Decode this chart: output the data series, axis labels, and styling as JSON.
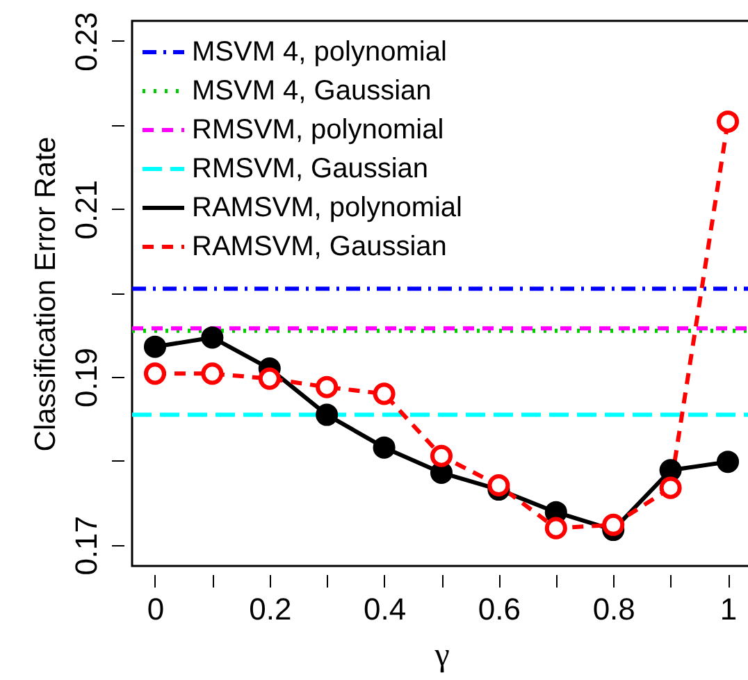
{
  "chart_data": {
    "type": "line",
    "xlabel": "γ",
    "ylabel": "Classification Error Rate",
    "xlim": [
      -0.04,
      1.04
    ],
    "ylim": [
      0.1675,
      0.2324
    ],
    "xticks": [
      0,
      {
        "value": 0.1,
        "label": null
      },
      0.2,
      {
        "value": 0.3,
        "label": null
      },
      0.4,
      {
        "value": 0.5,
        "label": null
      },
      0.6,
      {
        "value": 0.7,
        "label": null
      },
      0.8,
      {
        "value": 0.9,
        "label": null
      },
      {
        "value": 1,
        "label": "1"
      }
    ],
    "yticks": [
      0.17,
      {
        "value": 0.18,
        "label": null
      },
      0.19,
      {
        "value": 0.2,
        "label": null
      },
      0.21,
      {
        "value": 0.22,
        "label": null
      },
      0.23
    ],
    "grid": false,
    "legend": "top left",
    "series": [
      {
        "name": "MSVM 4, polynomial",
        "color": "#0000ff",
        "line_style": "dashdot",
        "marker": "none",
        "x": [
          -0.04,
          1.04
        ],
        "values": [
          0.2005,
          0.2005
        ]
      },
      {
        "name": "MSVM 4, Gaussian",
        "color": "#00cd00",
        "line_style": "dotted",
        "marker": "none",
        "x": [
          -0.04,
          1.04
        ],
        "values": [
          0.1955,
          0.1955
        ]
      },
      {
        "name": "RMSVM, polynomial",
        "color": "#ff00ff",
        "line_style": "dashed",
        "marker": "none",
        "x": [
          -0.04,
          1.04
        ],
        "values": [
          0.1958,
          0.1958
        ]
      },
      {
        "name": "RMSVM, Gaussian",
        "color": "#00ffff",
        "line_style": "longdash",
        "marker": "none",
        "x": [
          -0.04,
          1.04
        ],
        "values": [
          0.1855,
          0.1855
        ]
      },
      {
        "name": "RAMSVM, polynomial",
        "color": "#000000",
        "line_style": "solid",
        "marker": "circle",
        "x": [
          0,
          0.1,
          0.2,
          0.3,
          0.4,
          0.5,
          0.6,
          0.7,
          0.8,
          0.9,
          1
        ],
        "values": [
          0.1936,
          0.1947,
          0.191,
          0.1855,
          0.1816,
          0.1786,
          0.1766,
          0.1739,
          0.1718,
          0.1789,
          0.1799
        ]
      },
      {
        "name": "RAMSVM, Gaussian",
        "color": "#ff0000",
        "line_style": "dashed",
        "marker": "circle",
        "x": [
          0,
          0.1,
          0.2,
          0.3,
          0.4,
          0.5,
          0.6,
          0.7,
          0.8,
          0.9,
          1
        ],
        "values": [
          0.1904,
          0.1904,
          0.1898,
          0.1888,
          0.188,
          0.1806,
          0.1771,
          0.172,
          0.1724,
          0.1768,
          0.2204
        ]
      }
    ]
  }
}
